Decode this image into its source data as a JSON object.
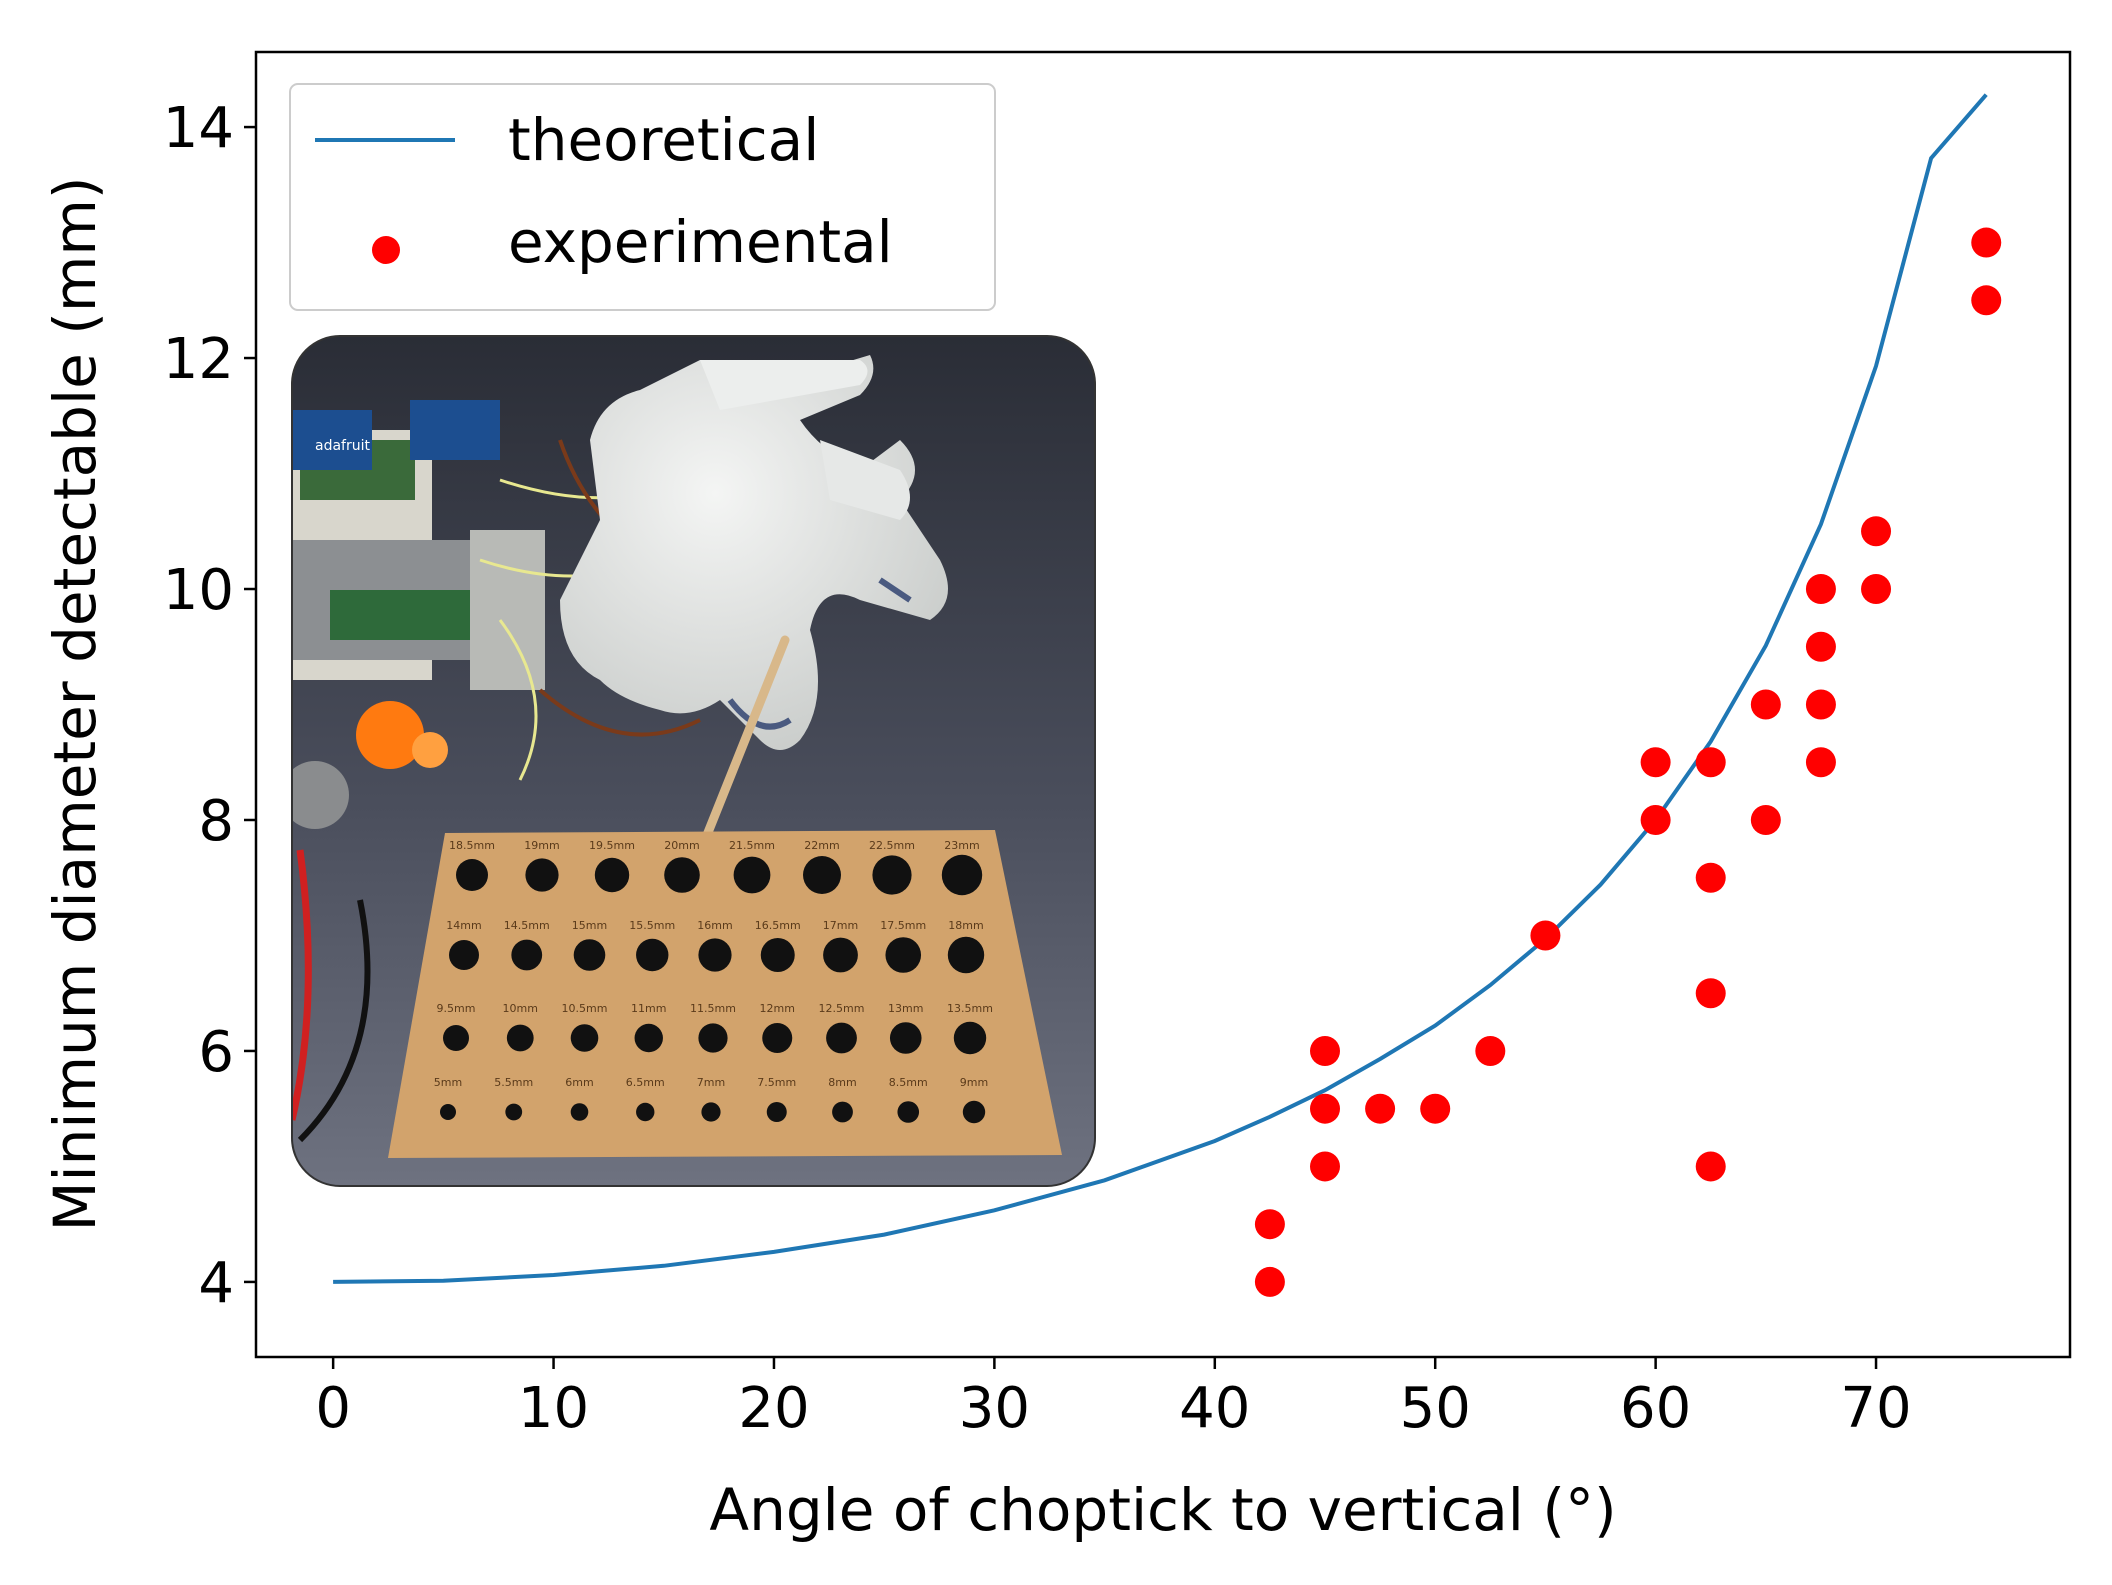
{
  "chart_data": {
    "type": "scatter",
    "title": "",
    "xlabel": "Angle of choptick to vertical (°)",
    "ylabel": "Minimum diameter detectable (mm)",
    "xlim": [
      -3.5,
      78.8
    ],
    "ylim": [
      3.35,
      14.65
    ],
    "xticks": [
      0,
      10,
      20,
      30,
      40,
      50,
      60,
      70
    ],
    "yticks": [
      4,
      6,
      8,
      10,
      12,
      14
    ],
    "grid": false,
    "legend_position": "top-left",
    "series": [
      {
        "name": "theoretical",
        "kind": "line",
        "color": "#1f77b4",
        "x": [
          0,
          5,
          10,
          15,
          20,
          25,
          30,
          35,
          40,
          42.5,
          45,
          47.5,
          50,
          52.5,
          55,
          57.5,
          60,
          62.5,
          65,
          67.5,
          70,
          72.5,
          75
        ],
        "y": [
          4.0,
          4.01,
          4.06,
          4.14,
          4.26,
          4.41,
          4.62,
          4.88,
          5.22,
          5.43,
          5.66,
          5.93,
          6.22,
          6.57,
          6.97,
          7.44,
          8.0,
          8.68,
          9.51,
          10.56,
          11.93,
          13.73,
          14.28
        ]
      },
      {
        "name": "experimental",
        "kind": "scatter",
        "color": "#ff0000",
        "x": [
          42.5,
          42.5,
          45,
          45,
          45,
          47.5,
          50,
          52.5,
          55,
          60,
          60,
          62.5,
          62.5,
          62.5,
          62.5,
          65,
          65,
          67.5,
          67.5,
          67.5,
          67.5,
          70,
          70,
          75,
          75
        ],
        "y": [
          4.0,
          4.5,
          5.0,
          5.5,
          6.0,
          5.5,
          5.5,
          6.0,
          7.0,
          8.0,
          8.5,
          5.0,
          6.5,
          7.5,
          8.5,
          8.0,
          9.0,
          8.5,
          9.0,
          9.5,
          10.0,
          10.0,
          10.5,
          12.5,
          13.0
        ]
      }
    ]
  },
  "inset_photo": {
    "board_labels": [
      [
        "18.5mm",
        "19mm",
        "19.5mm",
        "20mm",
        "21.5mm",
        "22mm",
        "22.5mm",
        "23mm"
      ],
      [
        "14mm",
        "14.5mm",
        "15mm",
        "15.5mm",
        "16mm",
        "16.5mm",
        "17mm",
        "17.5mm",
        "18mm"
      ],
      [
        "9.5mm",
        "10mm",
        "10.5mm",
        "11mm",
        "11.5mm",
        "12mm",
        "12.5mm",
        "13mm",
        "13.5mm"
      ],
      [
        "5mm",
        "5.5mm",
        "6mm",
        "6.5mm",
        "7mm",
        "7.5mm",
        "8mm",
        "8.5mm",
        "9mm"
      ]
    ],
    "device_label": "adafruit"
  }
}
